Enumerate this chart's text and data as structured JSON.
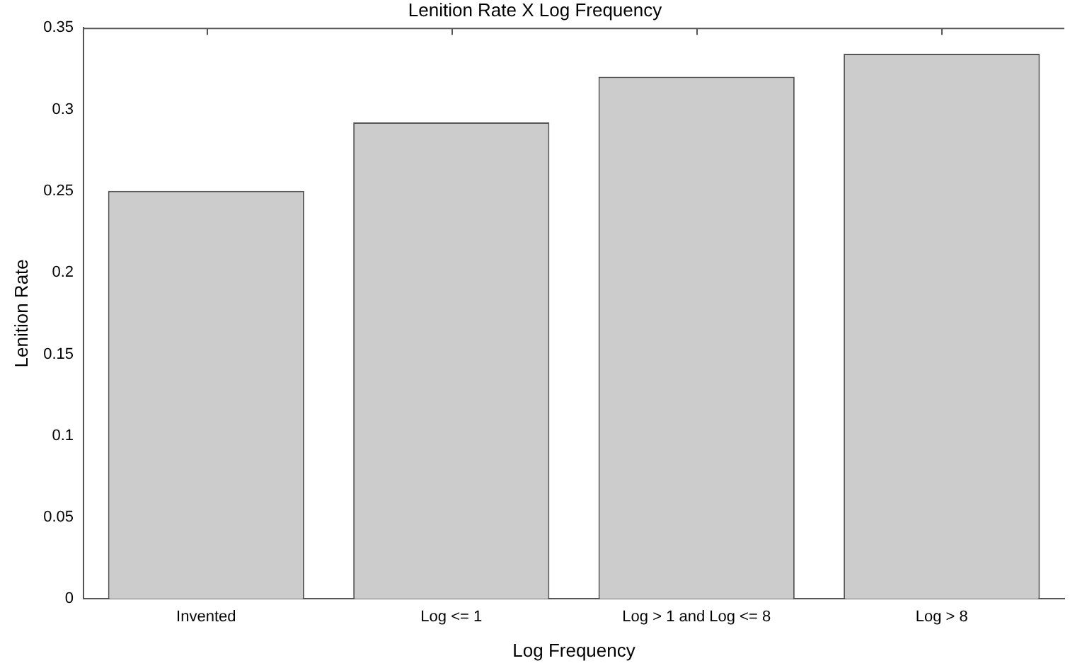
{
  "chart_data": {
    "type": "bar",
    "title": "Lenition Rate X Log Frequency",
    "xlabel": "Log Frequency",
    "ylabel": "Lenition Rate",
    "categories": [
      "Invented",
      "Log <= 1",
      "Log > 1 and Log <= 8",
      "Log > 8"
    ],
    "values": [
      0.25,
      0.292,
      0.32,
      0.334
    ],
    "color": "#cccccc",
    "ylim": [
      0,
      0.35
    ],
    "yticks": [
      0,
      0.05,
      0.1,
      0.15,
      0.2,
      0.25,
      0.3,
      0.35
    ],
    "grid": false,
    "legend": false
  }
}
